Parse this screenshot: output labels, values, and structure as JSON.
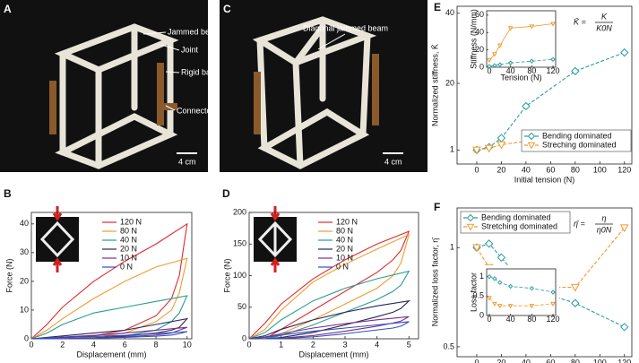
{
  "photos": [
    {
      "letter": "A",
      "labels": [
        "Jammed beam",
        "Joint",
        "Rigid bar",
        "Connector"
      ],
      "scale": "4 cm"
    },
    {
      "letter": "C",
      "labels": [
        "Diagonal jammed beam"
      ],
      "scale": "4 cm"
    }
  ],
  "chart_data": [
    {
      "type": "line",
      "panel": "B",
      "xlabel": "Displacement (mm)",
      "ylabel": "Force (N)",
      "x": [
        0,
        1,
        2,
        4,
        6,
        8,
        10,
        9.5,
        9,
        8,
        6,
        4,
        2,
        0.5
      ],
      "xlim": [
        0,
        10.3
      ],
      "xticks": [
        0,
        2,
        4,
        6,
        8,
        10
      ],
      "ylim": [
        0,
        44
      ],
      "yticks": [
        0,
        10,
        20,
        30,
        40
      ],
      "legend": "upper left",
      "series": [
        {
          "name": "120 N",
          "color": "#e0282e",
          "values": [
            0,
            5,
            11,
            20,
            27,
            33,
            40,
            22,
            14,
            8,
            3,
            1,
            0.2,
            0
          ]
        },
        {
          "name": "80 N",
          "color": "#f29a2e",
          "values": [
            0,
            3,
            7,
            14,
            20,
            25,
            28,
            16,
            10,
            6,
            2,
            0.5,
            0.1,
            0
          ]
        },
        {
          "name": "40 N",
          "color": "#2a9d8f",
          "values": [
            0,
            2,
            5,
            9,
            11,
            13,
            15,
            9,
            6,
            3,
            1,
            0.3,
            0,
            0
          ]
        },
        {
          "name": "20 N",
          "color": "#23285e",
          "values": [
            0,
            0.5,
            1,
            2,
            3,
            5,
            7,
            4,
            3,
            2,
            1,
            0.3,
            0,
            0
          ]
        },
        {
          "name": "10 N",
          "color": "#7b2f86",
          "values": [
            0,
            0.3,
            0.6,
            1.2,
            2,
            3,
            4,
            3,
            2,
            1.3,
            0.7,
            0.3,
            0,
            0
          ]
        },
        {
          "name": "0 N",
          "color": "#2f4fc4",
          "values": [
            0,
            0.2,
            0.4,
            0.8,
            1.2,
            1.8,
            2.5,
            1.8,
            1.3,
            0.9,
            0.5,
            0.2,
            0,
            0
          ]
        }
      ]
    },
    {
      "type": "line",
      "panel": "D",
      "xlabel": "Displacement (mm)",
      "ylabel": "Force (N)",
      "x": [
        0,
        0.5,
        1,
        2,
        3,
        4,
        5,
        4.75,
        4.5,
        4,
        3,
        2,
        1,
        0.5
      ],
      "xlim": [
        0,
        5.3
      ],
      "xticks": [
        0,
        1,
        2,
        3,
        4,
        5
      ],
      "ylim": [
        0,
        200
      ],
      "yticks": [
        0,
        50,
        100,
        150,
        200
      ],
      "legend": "upper left",
      "series": [
        {
          "name": "120 N",
          "color": "#e0282e",
          "values": [
            0,
            25,
            55,
            95,
            125,
            150,
            170,
            140,
            125,
            105,
            75,
            45,
            15,
            0
          ]
        },
        {
          "name": "80 N",
          "color": "#f29a2e",
          "values": [
            0,
            15,
            45,
            90,
            118,
            142,
            165,
            120,
            100,
            80,
            55,
            30,
            8,
            0
          ]
        },
        {
          "name": "40 N",
          "color": "#2a9d8f",
          "values": [
            0,
            10,
            30,
            60,
            80,
            95,
            107,
            85,
            75,
            62,
            42,
            22,
            5,
            0
          ]
        },
        {
          "name": "20 N",
          "color": "#23285e",
          "values": [
            0,
            5,
            15,
            30,
            42,
            52,
            60,
            48,
            42,
            35,
            22,
            10,
            2,
            0
          ]
        },
        {
          "name": "10 N",
          "color": "#7b2f86",
          "values": [
            0,
            3,
            8,
            17,
            24,
            30,
            35,
            28,
            25,
            20,
            12,
            5,
            1,
            0
          ]
        },
        {
          "name": "0 N",
          "color": "#2f4fc4",
          "values": [
            0,
            2,
            6,
            12,
            17,
            22,
            27,
            20,
            17,
            14,
            8,
            3,
            0.5,
            0
          ]
        }
      ]
    },
    {
      "type": "line",
      "panel": "E",
      "xlabel": "Initial tension (N)",
      "ylabel": "Normalized stiffness, K̄",
      "formula": {
        "lhs": "K̄ =",
        "num": "K",
        "den": "K0N"
      },
      "x": [
        0,
        10,
        20,
        40,
        80,
        120
      ],
      "xlim": [
        -16,
        126
      ],
      "xticks": [
        0,
        20,
        40,
        60,
        80,
        100,
        120
      ],
      "ylim": [
        -3,
        42
      ],
      "yticks": [
        1,
        20,
        40
      ],
      "legend": "lower right",
      "series": [
        {
          "name": "Bending dominated",
          "color": "#2a9d9d",
          "marker": "diamond",
          "linestyle": "dashed",
          "values": [
            1,
            1.8,
            4.4,
            13.5,
            23.5,
            28.8
          ]
        },
        {
          "name": "Streching dominated",
          "color": "#f29a2e",
          "marker": "triangle-down",
          "linestyle": "dashed",
          "values": [
            1,
            1.5,
            2.5,
            3.5,
            3.8,
            4.2
          ]
        }
      ]
    },
    {
      "type": "line",
      "xlabel": "Tension (N)",
      "ylabel": "Stiffness (N/mm)",
      "x": [
        0,
        10,
        20,
        40,
        80,
        120
      ],
      "xlim": [
        -5,
        125
      ],
      "xticks": [
        0,
        40,
        80,
        120
      ],
      "ylim": [
        0,
        65
      ],
      "yticks": [
        0,
        20,
        40,
        60
      ],
      "series": [
        {
          "color": "#2a9d9d",
          "marker": "diamond",
          "linestyle": "dashed",
          "values": [
            1,
            2,
            3,
            5,
            7,
            9
          ]
        },
        {
          "color": "#f29a2e",
          "marker": "triangle-down",
          "linestyle": "solid",
          "values": [
            8,
            15,
            25,
            45,
            47,
            50
          ]
        }
      ]
    },
    {
      "type": "line",
      "panel": "F",
      "xlabel": "Initial tension (N)",
      "ylabel": "Normalized loss factor, η̄",
      "formula": {
        "lhs": "η̄ =",
        "num": "η",
        "den": "η0N"
      },
      "x": [
        0,
        10,
        20,
        40,
        80,
        120
      ],
      "xlim": [
        -16,
        126
      ],
      "xticks": [
        0,
        20,
        40,
        60,
        80,
        100,
        120
      ],
      "ylim": [
        0.45,
        1.2
      ],
      "yticks": [
        0.5,
        1
      ],
      "legend": "upper left",
      "series": [
        {
          "name": "Bending dominated",
          "color": "#2a9d9d",
          "marker": "diamond",
          "linestyle": "dashed",
          "values": [
            1,
            1.02,
            0.95,
            0.8,
            0.72,
            0.6
          ]
        },
        {
          "name": "Stretching dominated",
          "color": "#f29a2e",
          "marker": "triangle-down",
          "linestyle": "dashed",
          "values": [
            1,
            0.9,
            0.8,
            0.8,
            0.8,
            1.1
          ]
        }
      ]
    },
    {
      "type": "line",
      "ylabel": "Loss factor",
      "x": [
        0,
        10,
        20,
        40,
        80,
        120
      ],
      "xlim": [
        -5,
        125
      ],
      "xticks": [
        0,
        40,
        80,
        120
      ],
      "ylim": [
        0,
        1.2
      ],
      "yticks": [
        0,
        0.5,
        1
      ],
      "series": [
        {
          "color": "#2a9d9d",
          "marker": "diamond",
          "linestyle": "dashed",
          "values": [
            1,
            0.95,
            0.85,
            0.75,
            0.7,
            0.6
          ]
        },
        {
          "color": "#f29a2e",
          "marker": "triangle-down",
          "linestyle": "dashed",
          "values": [
            0.45,
            0.3,
            0.25,
            0.25,
            0.25,
            0.3
          ]
        }
      ]
    }
  ]
}
